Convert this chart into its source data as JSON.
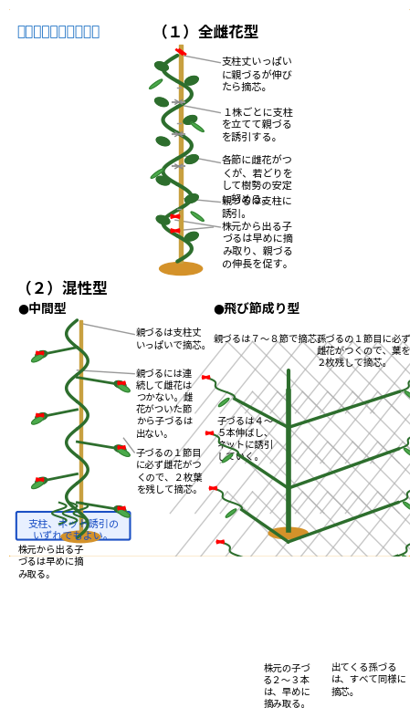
{
  "bg_color": "#ffffff",
  "border_color": "#f0a830",
  "header_bg": "#ffffff",
  "title_color": "#1a6fc4",
  "title_text": "支柱立て・整枝・誘引",
  "section1_title": "（１）全雌花型",
  "section2_title": "（２）混性型",
  "subsection_left": "●中間型",
  "subsection_right": "●飛び節成り型",
  "green_dark": "#2d6e2d",
  "green_mid": "#3a8a3a",
  "green_light": "#4aaa4a",
  "pole_color": "#c8a040",
  "ground_color": "#d4922a",
  "red_clip": "#cc2222",
  "gray_line": "#999999",
  "text_black": "#000000",
  "blue_box_bg": "#e8f0ff",
  "blue_box_text": "#1a4fc4",
  "blue_box_border": "#1a4fc4",
  "annotation1_1": "支柱丈いっぱい\nに親づるが伸び\nたら摘芯。",
  "annotation1_2": "１株ごとに支柱\nを立てて親づる\nを誘引する。",
  "annotation1_3": "各節に雌花がつ\nくが、若どりを\nして樹勢の安定\nに努める。",
  "annotation1_4": "親づるは支柱に\n誘引。",
  "annotation1_5": "株元から出る子\nづるは早めに摘\nみ取り、親づる\nの伸長を促す。",
  "annotation2_left_1": "親づるは支柱丈\nいっぱいで摘芯。",
  "annotation2_left_2": "親づるには連\n続して雌花は\nつかない。雌\n花がついた節\nから子づるは\n出ない。",
  "annotation2_left_3": "子づるの１節目\nに必ず雌花がつ\nくので、２枚葉\nを残して摘芯。",
  "annotation2_left_4_blue": "支柱、ネット誘引の\nいずれでもよい。",
  "annotation2_left_5": "株元から出る子\nづるは早めに摘\nみ取る。",
  "annotation2_right_top_left": "親づるは７～８節で摘芯。",
  "annotation2_right_top_right": "孫づるの１節目に必ず\n雌花がつくので、葉を\n２枚残して摘芯。",
  "annotation2_right_1": "子づるは４～\n５本伸ばし、\nネットに誘引\nしていく。",
  "annotation2_right_2": "株元の子づ\nる２～３本\nは、早めに\n摘み取る。",
  "annotation2_right_3": "出てくる孫づる\nは、すべて同様に\n摘芯。"
}
